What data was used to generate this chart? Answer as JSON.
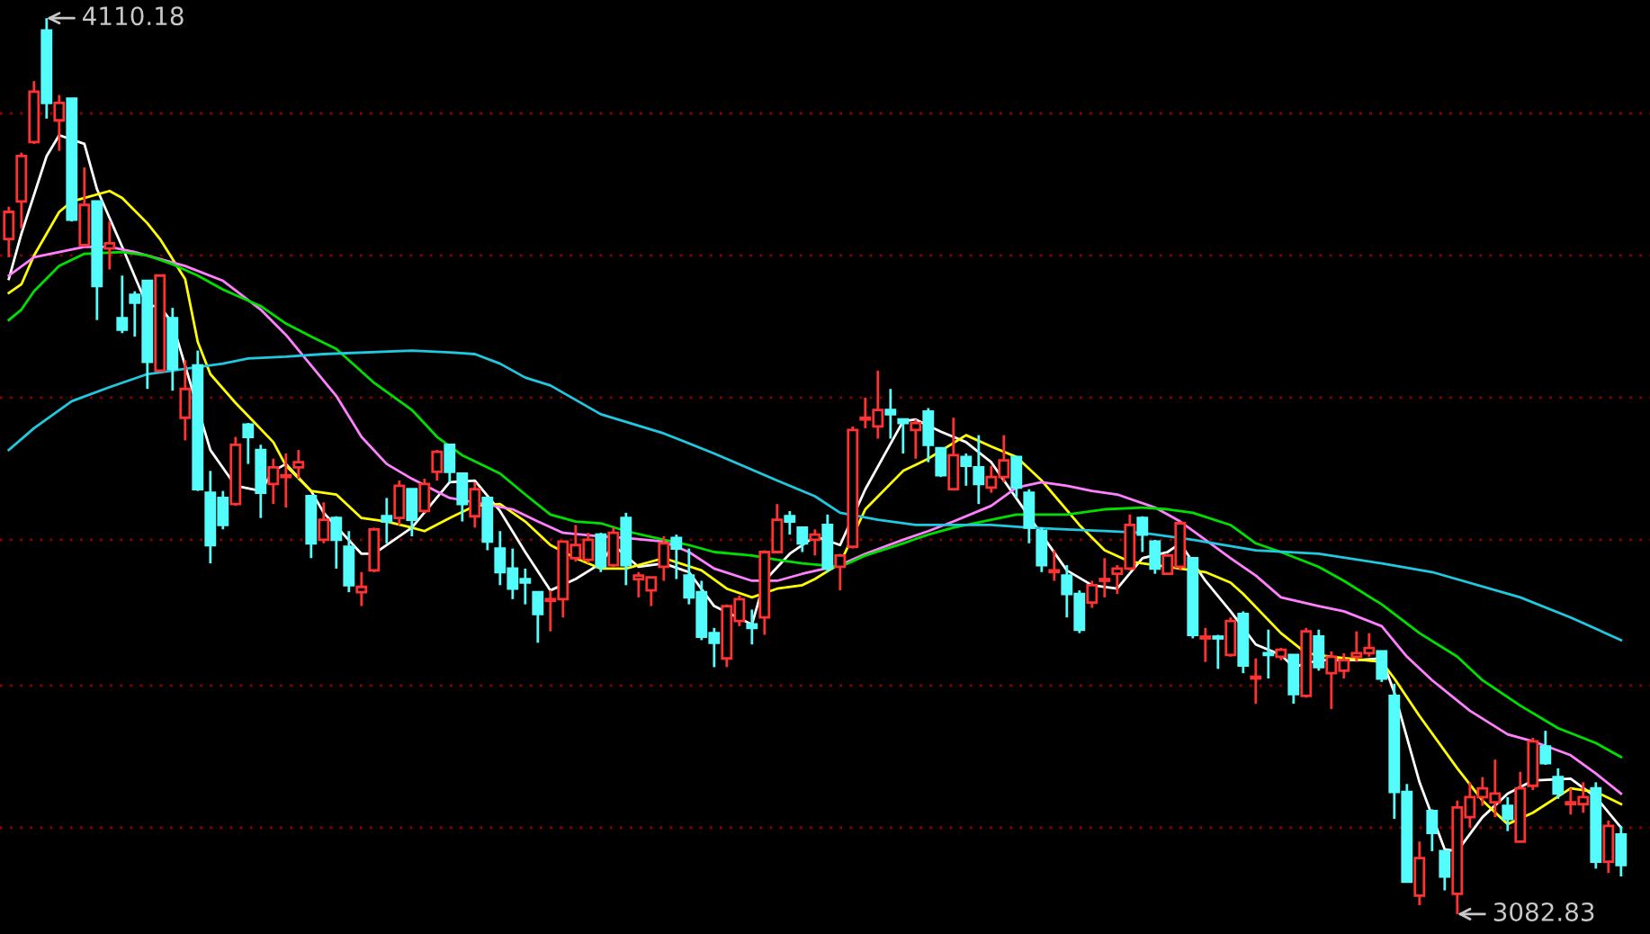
{
  "chart_data": {
    "type": "candlestick",
    "categories": [
      null,
      null,
      null,
      null,
      null,
      null,
      null,
      null,
      null,
      null,
      null,
      null,
      null,
      null,
      null,
      null,
      null,
      null,
      null,
      null,
      null,
      null,
      null,
      null,
      null,
      null,
      null,
      null,
      null,
      null,
      null,
      null,
      null,
      null,
      null,
      null,
      null,
      null,
      null,
      null,
      null,
      null,
      null,
      null,
      null,
      null,
      null,
      null,
      null,
      null,
      null,
      null,
      null,
      null,
      null,
      null,
      null,
      null,
      null,
      null,
      null,
      null,
      null,
      null,
      null,
      null,
      null,
      null,
      null,
      null,
      null,
      null,
      null,
      null,
      null,
      null,
      null,
      null,
      null,
      null,
      null,
      null,
      null,
      null,
      null,
      null,
      null,
      null,
      null,
      null,
      null,
      null,
      null,
      null,
      null,
      null,
      null,
      null,
      null,
      null,
      null,
      null,
      null,
      null,
      null,
      null,
      null,
      null,
      null,
      null,
      null,
      null,
      null,
      null,
      null,
      null,
      null,
      null,
      null,
      null,
      null,
      null,
      null,
      null,
      null,
      null,
      null,
      null,
      null
    ],
    "ohlc": [
      [
        3857,
        3894,
        3836,
        3888
      ],
      [
        3900,
        3956,
        3869,
        3952
      ],
      [
        3968,
        4038,
        3966,
        4026
      ],
      [
        4096,
        4110.18,
        3995,
        4013
      ],
      [
        3993,
        4022,
        3958,
        4013
      ],
      [
        4018,
        4018,
        3877,
        3879
      ],
      [
        3850,
        3939,
        3848,
        3896
      ],
      [
        3900,
        3900,
        3764,
        3803
      ],
      [
        3846,
        3877,
        3822,
        3852
      ],
      [
        3766,
        3815,
        3749,
        3753
      ],
      [
        3793,
        3797,
        3745,
        3784
      ],
      [
        3809,
        3809,
        3685,
        3716
      ],
      [
        3706,
        3815,
        3706,
        3815
      ],
      [
        3766,
        3778,
        3683,
        3708
      ],
      [
        3652,
        3718,
        3626,
        3685
      ],
      [
        3712,
        3729,
        3568,
        3570
      ],
      [
        3566,
        3591,
        3485,
        3506
      ],
      [
        3560,
        3568,
        3524,
        3529
      ],
      [
        3553,
        3630,
        3551,
        3621
      ],
      [
        3644,
        3646,
        3599,
        3630
      ],
      [
        3615,
        3621,
        3537,
        3566
      ],
      [
        3576,
        3605,
        3553,
        3595
      ],
      [
        3584,
        3611,
        3549,
        3586
      ],
      [
        3595,
        3615,
        3582,
        3601
      ],
      [
        3562,
        3562,
        3491,
        3508
      ],
      [
        3512,
        3555,
        3508,
        3535
      ],
      [
        3537,
        3539,
        3479,
        3512
      ],
      [
        3504,
        3522,
        3452,
        3460
      ],
      [
        3452,
        3475,
        3436,
        3458
      ],
      [
        3477,
        3526,
        3475,
        3524
      ],
      [
        3539,
        3560,
        3508,
        3533
      ],
      [
        3537,
        3580,
        3529,
        3574
      ],
      [
        3570,
        3570,
        3516,
        3535
      ],
      [
        3545,
        3582,
        3543,
        3576
      ],
      [
        3590,
        3615,
        3580,
        3613
      ],
      [
        3621,
        3621,
        3578,
        3590
      ],
      [
        3588,
        3588,
        3533,
        3553
      ],
      [
        3539,
        3578,
        3526,
        3570
      ],
      [
        3560,
        3560,
        3500,
        3510
      ],
      [
        3502,
        3522,
        3460,
        3475
      ],
      [
        3479,
        3502,
        3444,
        3456
      ],
      [
        3467,
        3479,
        3438,
        3463
      ],
      [
        3452,
        3452,
        3394,
        3427
      ],
      [
        3442,
        3454,
        3407,
        3444
      ],
      [
        3444,
        3510,
        3423,
        3510
      ],
      [
        3491,
        3529,
        3487,
        3506
      ],
      [
        3489,
        3520,
        3485,
        3512
      ],
      [
        3518,
        3520,
        3475,
        3481
      ],
      [
        3483,
        3526,
        3481,
        3520
      ],
      [
        3537,
        3543,
        3460,
        3483
      ],
      [
        3467,
        3475,
        3446,
        3471
      ],
      [
        3454,
        3469,
        3436,
        3469
      ],
      [
        3481,
        3516,
        3465,
        3508
      ],
      [
        3514,
        3518,
        3467,
        3502
      ],
      [
        3471,
        3502,
        3438,
        3446
      ],
      [
        3452,
        3465,
        3397,
        3401
      ],
      [
        3405,
        3411,
        3366,
        3394
      ],
      [
        3376,
        3438,
        3366,
        3436
      ],
      [
        3419,
        3448,
        3413,
        3444
      ],
      [
        3415,
        3432,
        3392,
        3411
      ],
      [
        3423,
        3500,
        3403,
        3498
      ],
      [
        3498,
        3553,
        3498,
        3535
      ],
      [
        3539,
        3545,
        3518,
        3533
      ],
      [
        3526,
        3526,
        3498,
        3508
      ],
      [
        3512,
        3524,
        3494,
        3518
      ],
      [
        3529,
        3541,
        3475,
        3479
      ],
      [
        3481,
        3496,
        3454,
        3494
      ],
      [
        3504,
        3642,
        3502,
        3638
      ],
      [
        3650,
        3675,
        3640,
        3652
      ],
      [
        3642,
        3706,
        3628,
        3661
      ],
      [
        3661,
        3685,
        3628,
        3656
      ],
      [
        3650,
        3650,
        3611,
        3646
      ],
      [
        3638,
        3650,
        3605,
        3646
      ],
      [
        3659,
        3663,
        3601,
        3621
      ],
      [
        3617,
        3617,
        3584,
        3586
      ],
      [
        3570,
        3652,
        3570,
        3609
      ],
      [
        3607,
        3611,
        3574,
        3597
      ],
      [
        3595,
        3632,
        3553,
        3576
      ],
      [
        3572,
        3597,
        3566,
        3584
      ],
      [
        3584,
        3632,
        3578,
        3603
      ],
      [
        3607,
        3607,
        3560,
        3572
      ],
      [
        3566,
        3570,
        3508,
        3526
      ],
      [
        3522,
        3526,
        3475,
        3483
      ],
      [
        3475,
        3500,
        3465,
        3477
      ],
      [
        3471,
        3483,
        3423,
        3450
      ],
      [
        3450,
        3454,
        3405,
        3409
      ],
      [
        3440,
        3465,
        3434,
        3460
      ],
      [
        3465,
        3491,
        3446,
        3467
      ],
      [
        3473,
        3483,
        3450,
        3479
      ],
      [
        3479,
        3541,
        3477,
        3529
      ],
      [
        3537,
        3539,
        3498,
        3518
      ],
      [
        3510,
        3512,
        3473,
        3479
      ],
      [
        3473,
        3496,
        3473,
        3494
      ],
      [
        3481,
        3533,
        3477,
        3531
      ],
      [
        3491,
        3491,
        3399,
        3403
      ],
      [
        3399,
        3411,
        3372,
        3401
      ],
      [
        3401,
        3403,
        3364,
        3399
      ],
      [
        3380,
        3423,
        3378,
        3419
      ],
      [
        3427,
        3430,
        3359,
        3368
      ],
      [
        3353,
        3376,
        3324,
        3355
      ],
      [
        3382,
        3409,
        3353,
        3380
      ],
      [
        3378,
        3388,
        3374,
        3386
      ],
      [
        3380,
        3380,
        3324,
        3335
      ],
      [
        3333,
        3411,
        3331,
        3407
      ],
      [
        3401,
        3409,
        3362,
        3366
      ],
      [
        3359,
        3384,
        3318,
        3378
      ],
      [
        3362,
        3382,
        3353,
        3374
      ],
      [
        3378,
        3407,
        3372,
        3382
      ],
      [
        3382,
        3405,
        3378,
        3388
      ],
      [
        3384,
        3384,
        3349,
        3353
      ],
      [
        3333,
        3347,
        3192,
        3223
      ],
      [
        3223,
        3232,
        3120,
        3120
      ],
      [
        3104,
        3166,
        3093,
        3147
      ],
      [
        3201,
        3203,
        3155,
        3176
      ],
      [
        3155,
        3155,
        3110,
        3126
      ],
      [
        3106,
        3213,
        3082.83,
        3205
      ],
      [
        3194,
        3234,
        3182,
        3217
      ],
      [
        3217,
        3240,
        3207,
        3227
      ],
      [
        3211,
        3260,
        3194,
        3221
      ],
      [
        3207,
        3217,
        3178,
        3192
      ],
      [
        3166,
        3246,
        3166,
        3227
      ],
      [
        3230,
        3285,
        3225,
        3281
      ],
      [
        3275,
        3293,
        3254,
        3256
      ],
      [
        3240,
        3250,
        3215,
        3221
      ],
      [
        3209,
        3227,
        3197,
        3211
      ],
      [
        3209,
        3234,
        3199,
        3217
      ],
      [
        3227,
        3234,
        3135,
        3143
      ],
      [
        3143,
        3190,
        3130,
        3184
      ],
      [
        3174,
        3184,
        3126,
        3139
      ]
    ],
    "colors": [
      "#ff3232",
      "#ff3232",
      "#ff3232",
      "#54fcfc",
      "#ff3232",
      "#54fcfc",
      "#ff3232",
      "#54fcfc",
      "#ff3232",
      "#54fcfc",
      "#54fcfc",
      "#54fcfc",
      "#ff3232",
      "#54fcfc",
      "#ff3232",
      "#54fcfc",
      "#54fcfc",
      "#54fcfc",
      "#ff3232",
      "#54fcfc",
      "#54fcfc",
      "#ff3232",
      "#ff3232",
      "#ff3232",
      "#54fcfc",
      "#ff3232",
      "#54fcfc",
      "#54fcfc",
      "#ff3232",
      "#ff3232",
      "#54fcfc",
      "#ff3232",
      "#54fcfc",
      "#ff3232",
      "#ff3232",
      "#54fcfc",
      "#54fcfc",
      "#ff3232",
      "#54fcfc",
      "#54fcfc",
      "#54fcfc",
      "#54fcfc",
      "#54fcfc",
      "#ff3232",
      "#ff3232",
      "#ff3232",
      "#ff3232",
      "#54fcfc",
      "#ff3232",
      "#54fcfc",
      "#ff3232",
      "#ff3232",
      "#ff3232",
      "#54fcfc",
      "#54fcfc",
      "#54fcfc",
      "#54fcfc",
      "#ff3232",
      "#ff3232",
      "#54fcfc",
      "#ff3232",
      "#ff3232",
      "#54fcfc",
      "#54fcfc",
      "#ff3232",
      "#54fcfc",
      "#ff3232",
      "#ff3232",
      "#ff3232",
      "#ff3232",
      "#54fcfc",
      "#54fcfc",
      "#ff3232",
      "#54fcfc",
      "#54fcfc",
      "#ff3232",
      "#54fcfc",
      "#54fcfc",
      "#ff3232",
      "#ff3232",
      "#54fcfc",
      "#54fcfc",
      "#54fcfc",
      "#ff3232",
      "#54fcfc",
      "#54fcfc",
      "#ff3232",
      "#ff3232",
      "#ff3232",
      "#ff3232",
      "#54fcfc",
      "#54fcfc",
      "#ff3232",
      "#ff3232",
      "#54fcfc",
      "#ff3232",
      "#54fcfc",
      "#ff3232",
      "#54fcfc",
      "#ff3232",
      "#54fcfc",
      "#ff3232",
      "#54fcfc",
      "#ff3232",
      "#54fcfc",
      "#ff3232",
      "#ff3232",
      "#ff3232",
      "#ff3232",
      "#54fcfc",
      "#54fcfc",
      "#54fcfc",
      "#ff3232",
      "#54fcfc",
      "#54fcfc",
      "#ff3232",
      "#ff3232",
      "#ff3232",
      "#ff3232",
      "#54fcfc",
      "#ff3232",
      "#ff3232",
      "#54fcfc",
      "#54fcfc",
      "#ff3232",
      "#ff3232",
      "#54fcfc",
      "#ff3232",
      "#54fcfc"
    ],
    "series": [
      {
        "type": "line",
        "color": "#ffffff",
        "values": [
          3811,
          3863,
          null,
          3952,
          3976,
          null,
          3966,
          3914,
          null,
          3848,
          null,
          3780,
          3780,
          3760,
          null,
          null,
          3615,
          null,
          3574,
          null,
          3568,
          3591,
          3599,
          null,
          3568,
          3543,
          null,
          null,
          3496,
          3496,
          null,
          null,
          3526,
          null,
          null,
          3578,
          null,
          3580,
          null,
          3545,
          null,
          3498,
          null,
          3454,
          null,
          3467,
          null,
          3485,
          3506,
          null,
          3481,
          null,
          3485,
          null,
          3475,
          null,
          3436,
          null,
          null,
          3415,
          3465,
          null,
          3496,
          null,
          3516,
          null,
          3506,
          null,
          3570,
          null,
          null,
          3648,
          3650,
          null,
          3636,
          null,
          3624,
          null,
          3601,
          null,
          null,
          null,
          3518,
          null,
          3477,
          null,
          3460,
          null,
          3456,
          null,
          3491,
          null,
          3498,
          3508,
          null,
          3465,
          null,
          3430,
          null,
          3392,
          null,
          3380,
          3366,
          null,
          3374,
          null,
          null,
          3374,
          null,
          3376,
          3337,
          null,
          3234,
          null,
          3157,
          3155,
          null,
          3194,
          null,
          3221,
          null,
          3236,
          null,
          null,
          3238,
          null,
          3217,
          null,
          3182
        ]
      },
      {
        "type": "line",
        "color": "#ffff00",
        "values": [
          3795,
          3805,
          3838,
          null,
          3888,
          3900,
          null,
          null,
          3912,
          3904,
          null,
          3875,
          3857,
          null,
          3811,
          3739,
          3702,
          null,
          3669,
          3654,
          null,
          3624,
          3597,
          null,
          3568,
          null,
          3564,
          null,
          3537,
          null,
          3533,
          null,
          3526,
          3522,
          null,
          3537,
          null,
          3551,
          null,
          3553,
          null,
          3533,
          null,
          3506,
          null,
          3491,
          null,
          3479,
          null,
          3479,
          null,
          null,
          3491,
          null,
          null,
          3477,
          null,
          3456,
          null,
          3446,
          null,
          3456,
          null,
          3460,
          3467,
          null,
          3485,
          null,
          3547,
          null,
          null,
          3591,
          null,
          3605,
          null,
          null,
          3632,
          null,
          3619,
          null,
          3607,
          null,
          3580,
          null,
          null,
          3529,
          null,
          3500,
          null,
          3487,
          null,
          null,
          3481,
          null,
          null,
          3475,
          null,
          3463,
          3450,
          null,
          null,
          3405,
          null,
          3382,
          null,
          3378,
          null,
          null,
          null,
          3372,
          3353,
          null,
          3310,
          null,
          null,
          3250,
          null,
          3213,
          null,
          3186,
          null,
          3199,
          null,
          null,
          3227,
          null,
          3223,
          null,
          3209
        ]
      },
      {
        "type": "line",
        "color": "#ff80ff",
        "values": [
          3815,
          null,
          3836,
          null,
          3842,
          null,
          3848,
          null,
          3848,
          null,
          3842,
          null,
          3834,
          null,
          3826,
          null,
          null,
          3809,
          null,
          null,
          3776,
          null,
          3747,
          null,
          3712,
          null,
          3677,
          null,
          3630,
          null,
          3599,
          null,
          3582,
          null,
          null,
          3560,
          null,
          3555,
          null,
          null,
          3547,
          null,
          3533,
          null,
          3520,
          null,
          null,
          3516,
          null,
          3514,
          null,
          null,
          3510,
          null,
          3498,
          null,
          3479,
          null,
          null,
          3465,
          null,
          3465,
          null,
          3473,
          null,
          null,
          3483,
          null,
          3496,
          null,
          null,
          3512,
          null,
          3522,
          null,
          3533,
          null,
          null,
          3551,
          null,
          3572,
          null,
          3578,
          null,
          3574,
          null,
          3568,
          null,
          3564,
          null,
          null,
          3549,
          null,
          3533,
          null,
          3512,
          null,
          3491,
          null,
          3471,
          null,
          3446,
          null,
          null,
          3436,
          null,
          3430,
          null,
          null,
          3413,
          null,
          3378,
          null,
          3351,
          null,
          null,
          3316,
          null,
          null,
          3289,
          null,
          3281,
          null,
          null,
          3265,
          null,
          3244,
          null,
          3221
        ]
      },
      {
        "type": "line",
        "color": "#00e000",
        "values": [
          3764,
          3776,
          3797,
          null,
          3826,
          null,
          3840,
          null,
          null,
          3842,
          null,
          3838,
          null,
          3828,
          null,
          3815,
          null,
          3799,
          null,
          null,
          3780,
          null,
          3760,
          null,
          3745,
          null,
          3731,
          null,
          null,
          3692,
          null,
          null,
          3661,
          null,
          3630,
          null,
          3609,
          null,
          null,
          3588,
          null,
          3564,
          null,
          3541,
          null,
          3533,
          null,
          3531,
          null,
          3522,
          null,
          null,
          3512,
          null,
          3506,
          null,
          3498,
          null,
          null,
          3494,
          null,
          3489,
          null,
          3485,
          null,
          null,
          3481,
          null,
          3494,
          null,
          null,
          3508,
          null,
          3518,
          null,
          3526,
          null,
          null,
          3535,
          null,
          3541,
          null,
          null,
          null,
          3541,
          null,
          null,
          3547,
          null,
          null,
          3549,
          null,
          3547,
          null,
          3543,
          null,
          null,
          3529,
          null,
          3508,
          null,
          3498,
          null,
          null,
          3481,
          null,
          3465,
          null,
          null,
          3438,
          null,
          null,
          3405,
          null,
          null,
          3378,
          null,
          3351,
          null,
          null,
          3322,
          null,
          null,
          3296,
          null,
          null,
          3279,
          null,
          3263
        ]
      },
      {
        "type": "line",
        "color": "#20c8e0",
        "values": [
          3615,
          null,
          3640,
          null,
          null,
          3671,
          null,
          null,
          3687,
          null,
          null,
          3702,
          null,
          null,
          3708,
          null,
          null,
          3714,
          null,
          3720,
          null,
          null,
          3722,
          null,
          null,
          3725,
          null,
          null,
          null,
          null,
          null,
          null,
          3729,
          null,
          null,
          3727,
          null,
          3725,
          null,
          3714,
          null,
          3698,
          null,
          3689,
          null,
          null,
          null,
          3656,
          null,
          null,
          null,
          null,
          3634,
          null,
          null,
          null,
          3611,
          null,
          null,
          null,
          null,
          3580,
          null,
          null,
          3562,
          null,
          3543,
          null,
          null,
          3535,
          null,
          null,
          3529,
          null,
          null,
          3529,
          null,
          null,
          3529,
          null,
          null,
          3526,
          null,
          null,
          3524,
          null,
          null,
          3522,
          null,
          null,
          3520,
          null,
          null,
          null,
          3512,
          null,
          null,
          null,
          null,
          3500,
          null,
          null,
          null,
          null,
          3496,
          null,
          null,
          null,
          null,
          3485,
          null,
          null,
          null,
          3475,
          null,
          null,
          null,
          null,
          null,
          null,
          3446,
          null,
          null,
          null,
          3423,
          null,
          null,
          null,
          3397
        ]
      }
    ],
    "ylim": [
      3060,
      4131
    ],
    "yticks": [
      {
        "value": 4001,
        "label": null
      },
      {
        "value": 3838,
        "label": null
      },
      {
        "value": 3675,
        "label": null
      },
      {
        "value": 3512,
        "label": null
      },
      {
        "value": 3345,
        "label": null
      },
      {
        "value": 3182,
        "label": null
      }
    ],
    "grid": "y",
    "annotations": [
      "4110.18",
      "3082.83"
    ]
  }
}
